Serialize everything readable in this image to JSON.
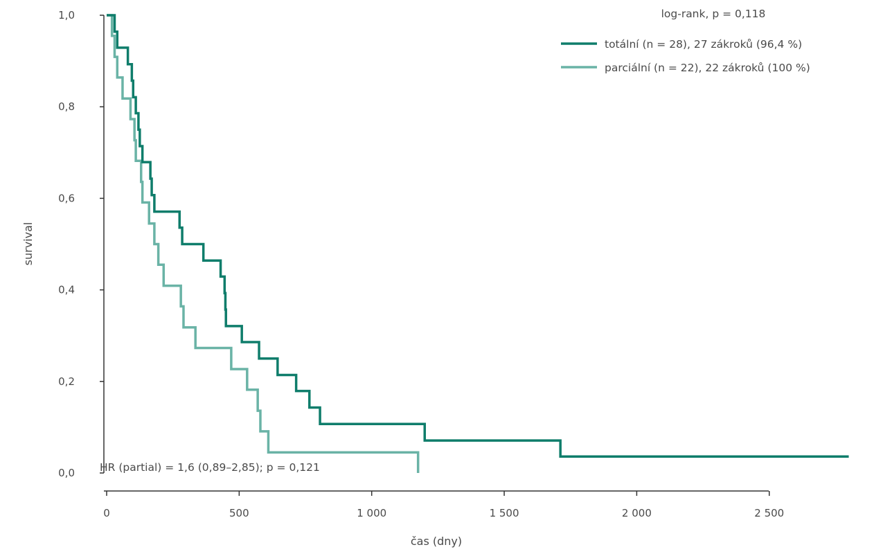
{
  "chart_data": {
    "type": "line",
    "step": true,
    "xlabel": "čas (dny)",
    "ylabel": "survival",
    "xlim": [
      0,
      2800
    ],
    "ylim": [
      0,
      1
    ],
    "x_ticks": [
      0,
      500,
      1000,
      1500,
      2000,
      2500
    ],
    "x_tick_labels": [
      "0",
      "500",
      "1 000",
      "1 500",
      "2 000",
      "2 500"
    ],
    "y_ticks": [
      0,
      0.2,
      0.4,
      0.6,
      0.8,
      1.0
    ],
    "y_tick_labels": [
      "0,0",
      "0,2",
      "0,4",
      "0,6",
      "0,8",
      "1,0"
    ],
    "grid": false,
    "legend_position": "top-right",
    "legend_title": "log-rank, p = 0,118",
    "annotation": "HR (partial) = 1,6 (0,89–2,85); p = 0,121",
    "series": [
      {
        "name": "totální (n = 28), 27 zákroků (96,4 %)",
        "color": "#0f7d6b",
        "line_width": 3.5,
        "points": [
          [
            0,
            1.0
          ],
          [
            30,
            1.0
          ],
          [
            30,
            0.964
          ],
          [
            40,
            0.964
          ],
          [
            40,
            0.929
          ],
          [
            80,
            0.929
          ],
          [
            80,
            0.893
          ],
          [
            95,
            0.893
          ],
          [
            95,
            0.857
          ],
          [
            100,
            0.857
          ],
          [
            100,
            0.821
          ],
          [
            110,
            0.821
          ],
          [
            110,
            0.786
          ],
          [
            120,
            0.786
          ],
          [
            120,
            0.75
          ],
          [
            125,
            0.75
          ],
          [
            125,
            0.714
          ],
          [
            135,
            0.714
          ],
          [
            135,
            0.679
          ],
          [
            165,
            0.679
          ],
          [
            165,
            0.643
          ],
          [
            170,
            0.643
          ],
          [
            170,
            0.607
          ],
          [
            180,
            0.607
          ],
          [
            180,
            0.571
          ],
          [
            275,
            0.571
          ],
          [
            275,
            0.536
          ],
          [
            285,
            0.536
          ],
          [
            285,
            0.5
          ],
          [
            365,
            0.5
          ],
          [
            365,
            0.464
          ],
          [
            430,
            0.464
          ],
          [
            430,
            0.429
          ],
          [
            445,
            0.429
          ],
          [
            445,
            0.393
          ],
          [
            448,
            0.393
          ],
          [
            448,
            0.357
          ],
          [
            450,
            0.357
          ],
          [
            450,
            0.321
          ],
          [
            510,
            0.321
          ],
          [
            510,
            0.286
          ],
          [
            575,
            0.286
          ],
          [
            575,
            0.25
          ],
          [
            645,
            0.25
          ],
          [
            645,
            0.214
          ],
          [
            715,
            0.214
          ],
          [
            715,
            0.179
          ],
          [
            765,
            0.179
          ],
          [
            765,
            0.143
          ],
          [
            805,
            0.143
          ],
          [
            805,
            0.107
          ],
          [
            1200,
            0.107
          ],
          [
            1200,
            0.071
          ],
          [
            1712,
            0.071
          ],
          [
            1712,
            0.036
          ],
          [
            2800,
            0.036
          ]
        ]
      },
      {
        "name": "parciální (n = 22), 22 zákroků (100 %)",
        "color": "#6ab3a6",
        "line_width": 3.5,
        "points": [
          [
            0,
            1.0
          ],
          [
            20,
            1.0
          ],
          [
            20,
            0.955
          ],
          [
            30,
            0.955
          ],
          [
            30,
            0.909
          ],
          [
            40,
            0.909
          ],
          [
            40,
            0.864
          ],
          [
            60,
            0.864
          ],
          [
            60,
            0.818
          ],
          [
            90,
            0.818
          ],
          [
            90,
            0.773
          ],
          [
            105,
            0.773
          ],
          [
            105,
            0.727
          ],
          [
            110,
            0.727
          ],
          [
            110,
            0.682
          ],
          [
            130,
            0.682
          ],
          [
            130,
            0.636
          ],
          [
            135,
            0.636
          ],
          [
            135,
            0.591
          ],
          [
            160,
            0.591
          ],
          [
            160,
            0.545
          ],
          [
            180,
            0.545
          ],
          [
            180,
            0.5
          ],
          [
            195,
            0.5
          ],
          [
            195,
            0.455
          ],
          [
            215,
            0.455
          ],
          [
            215,
            0.409
          ],
          [
            280,
            0.409
          ],
          [
            280,
            0.364
          ],
          [
            290,
            0.364
          ],
          [
            290,
            0.318
          ],
          [
            335,
            0.318
          ],
          [
            335,
            0.273
          ],
          [
            470,
            0.273
          ],
          [
            470,
            0.227
          ],
          [
            530,
            0.227
          ],
          [
            530,
            0.182
          ],
          [
            570,
            0.182
          ],
          [
            570,
            0.136
          ],
          [
            580,
            0.136
          ],
          [
            580,
            0.091
          ],
          [
            610,
            0.091
          ],
          [
            610,
            0.045
          ],
          [
            1175,
            0.045
          ],
          [
            1175,
            0.0
          ]
        ]
      }
    ]
  }
}
